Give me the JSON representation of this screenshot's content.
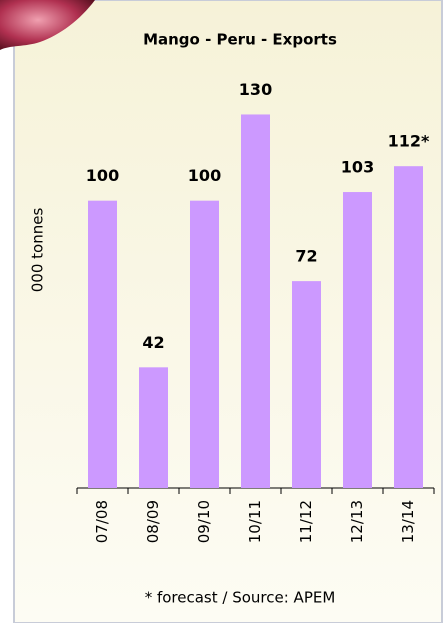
{
  "chart_data": {
    "type": "bar",
    "title": "Mango - Peru - Exports",
    "y_label": "000 tonnes",
    "categories": [
      "07/08",
      "08/09",
      "09/10",
      "10/11",
      "11/12",
      "12/13",
      "13/14"
    ],
    "values": [
      100,
      42,
      100,
      130,
      72,
      103,
      112
    ],
    "value_labels": [
      "100",
      "42",
      "100",
      "130",
      "72",
      "103",
      "112*"
    ],
    "color": "#cc99ff",
    "ylim": [
      0,
      150
    ],
    "footnote": "* forecast / Source: APEM"
  }
}
